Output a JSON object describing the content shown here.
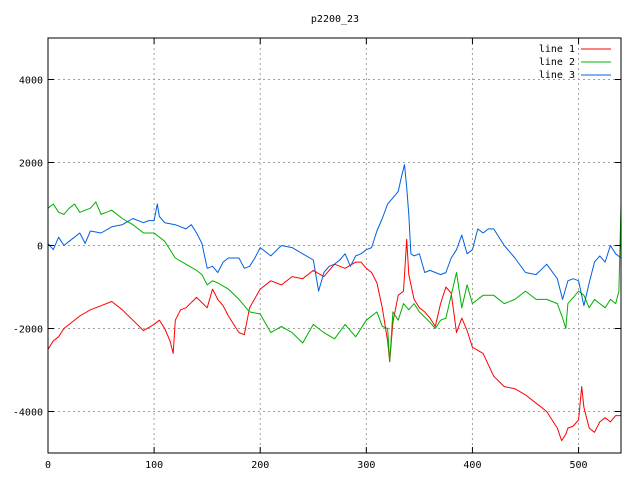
{
  "chart_data": {
    "type": "line",
    "title": "p2200_23",
    "xlabel": "",
    "ylabel": "",
    "xlim": [
      0,
      540
    ],
    "ylim": [
      -5000,
      5000
    ],
    "x_ticks": [
      0,
      100,
      200,
      300,
      400,
      500
    ],
    "y_ticks": [
      -4000,
      -2000,
      0,
      2000,
      4000
    ],
    "grid": true,
    "legend_position": "top-right",
    "series": [
      {
        "name": "line 1",
        "color": "#ff0000",
        "x": [
          0,
          5,
          10,
          15,
          20,
          30,
          40,
          50,
          60,
          70,
          80,
          90,
          100,
          105,
          110,
          115,
          118,
          120,
          125,
          130,
          140,
          150,
          155,
          160,
          165,
          170,
          175,
          180,
          185,
          190,
          200,
          210,
          220,
          230,
          240,
          250,
          260,
          270,
          280,
          290,
          295,
          300,
          305,
          310,
          315,
          320,
          322,
          325,
          330,
          335,
          338,
          340,
          345,
          350,
          355,
          360,
          365,
          370,
          375,
          380,
          385,
          390,
          395,
          400,
          410,
          420,
          430,
          440,
          450,
          460,
          470,
          480,
          484,
          488,
          490,
          495,
          500,
          503,
          505,
          510,
          515,
          520,
          525,
          530,
          535,
          540
        ],
        "y": [
          -2500,
          -2300,
          -2200,
          -2000,
          -1900,
          -1700,
          -1550,
          -1450,
          -1350,
          -1550,
          -1800,
          -2050,
          -1900,
          -1800,
          -2000,
          -2300,
          -2600,
          -1800,
          -1550,
          -1500,
          -1250,
          -1500,
          -1050,
          -1300,
          -1450,
          -1700,
          -1900,
          -2100,
          -2150,
          -1500,
          -1050,
          -850,
          -950,
          -750,
          -800,
          -600,
          -750,
          -450,
          -550,
          -400,
          -400,
          -550,
          -650,
          -900,
          -1500,
          -2300,
          -2800,
          -1850,
          -1200,
          -1100,
          150,
          -700,
          -1300,
          -1500,
          -1600,
          -1750,
          -1950,
          -1400,
          -1000,
          -1150,
          -2100,
          -1750,
          -2050,
          -2450,
          -2600,
          -3150,
          -3400,
          -3450,
          -3600,
          -3800,
          -4000,
          -4400,
          -4700,
          -4550,
          -4400,
          -4350,
          -4200,
          -3400,
          -3900,
          -4400,
          -4500,
          -4250,
          -4150,
          -4250,
          -4100,
          -4100
        ]
      },
      {
        "name": "line 2",
        "color": "#00b000",
        "x": [
          0,
          5,
          10,
          15,
          20,
          25,
          30,
          40,
          45,
          50,
          55,
          60,
          70,
          80,
          90,
          100,
          110,
          120,
          130,
          140,
          145,
          150,
          155,
          160,
          170,
          180,
          190,
          200,
          210,
          220,
          230,
          240,
          250,
          260,
          270,
          280,
          290,
          300,
          310,
          315,
          320,
          322,
          325,
          330,
          335,
          340,
          345,
          350,
          360,
          365,
          370,
          375,
          380,
          385,
          390,
          395,
          400,
          410,
          420,
          430,
          440,
          450,
          460,
          470,
          480,
          485,
          488,
          490,
          495,
          500,
          505,
          510,
          515,
          520,
          525,
          530,
          535,
          538,
          540
        ],
        "y": [
          900,
          1000,
          800,
          750,
          900,
          1000,
          800,
          900,
          1050,
          750,
          800,
          850,
          650,
          500,
          300,
          300,
          100,
          -300,
          -450,
          -600,
          -700,
          -950,
          -850,
          -900,
          -1050,
          -1300,
          -1600,
          -1650,
          -2100,
          -1950,
          -2100,
          -2350,
          -1900,
          -2100,
          -2250,
          -1900,
          -2200,
          -1800,
          -1600,
          -1950,
          -2000,
          -2800,
          -1600,
          -1800,
          -1400,
          -1550,
          -1400,
          -1600,
          -1850,
          -2000,
          -1800,
          -1750,
          -1200,
          -650,
          -1500,
          -950,
          -1400,
          -1200,
          -1200,
          -1400,
          -1300,
          -1100,
          -1300,
          -1300,
          -1400,
          -1750,
          -2000,
          -1400,
          -1250,
          -1100,
          -1200,
          -1500,
          -1300,
          -1400,
          -1500,
          -1300,
          -1400,
          -1100,
          1000
        ]
      },
      {
        "name": "line 3",
        "color": "#0060e0",
        "x": [
          0,
          5,
          10,
          15,
          20,
          25,
          30,
          35,
          40,
          50,
          60,
          70,
          80,
          90,
          95,
          100,
          103,
          105,
          110,
          120,
          130,
          135,
          140,
          145,
          150,
          155,
          160,
          165,
          170,
          180,
          185,
          190,
          195,
          200,
          210,
          220,
          230,
          240,
          250,
          255,
          260,
          265,
          270,
          275,
          280,
          285,
          290,
          295,
          300,
          305,
          310,
          315,
          320,
          325,
          330,
          333,
          336,
          338,
          340,
          342,
          345,
          350,
          355,
          360,
          365,
          370,
          375,
          380,
          385,
          390,
          395,
          400,
          405,
          410,
          415,
          420,
          430,
          440,
          450,
          460,
          470,
          480,
          485,
          490,
          495,
          500,
          505,
          510,
          515,
          520,
          525,
          530,
          535,
          540
        ],
        "y": [
          50,
          -100,
          200,
          0,
          100,
          200,
          300,
          50,
          350,
          300,
          450,
          500,
          650,
          550,
          600,
          600,
          1000,
          700,
          550,
          500,
          400,
          500,
          300,
          50,
          -550,
          -500,
          -650,
          -400,
          -300,
          -300,
          -550,
          -500,
          -300,
          -50,
          -250,
          0,
          -50,
          -200,
          -350,
          -1100,
          -650,
          -500,
          -450,
          -350,
          -200,
          -500,
          -250,
          -200,
          -100,
          -50,
          350,
          650,
          1000,
          1150,
          1300,
          1650,
          1950,
          1400,
          750,
          -200,
          -250,
          -200,
          -650,
          -600,
          -650,
          -700,
          -650,
          -300,
          -100,
          250,
          -200,
          -100,
          400,
          300,
          400,
          400,
          0,
          -300,
          -650,
          -700,
          -450,
          -800,
          -1300,
          -850,
          -800,
          -850,
          -1450,
          -900,
          -400,
          -250,
          -400,
          0,
          -200,
          -300
        ]
      }
    ]
  }
}
